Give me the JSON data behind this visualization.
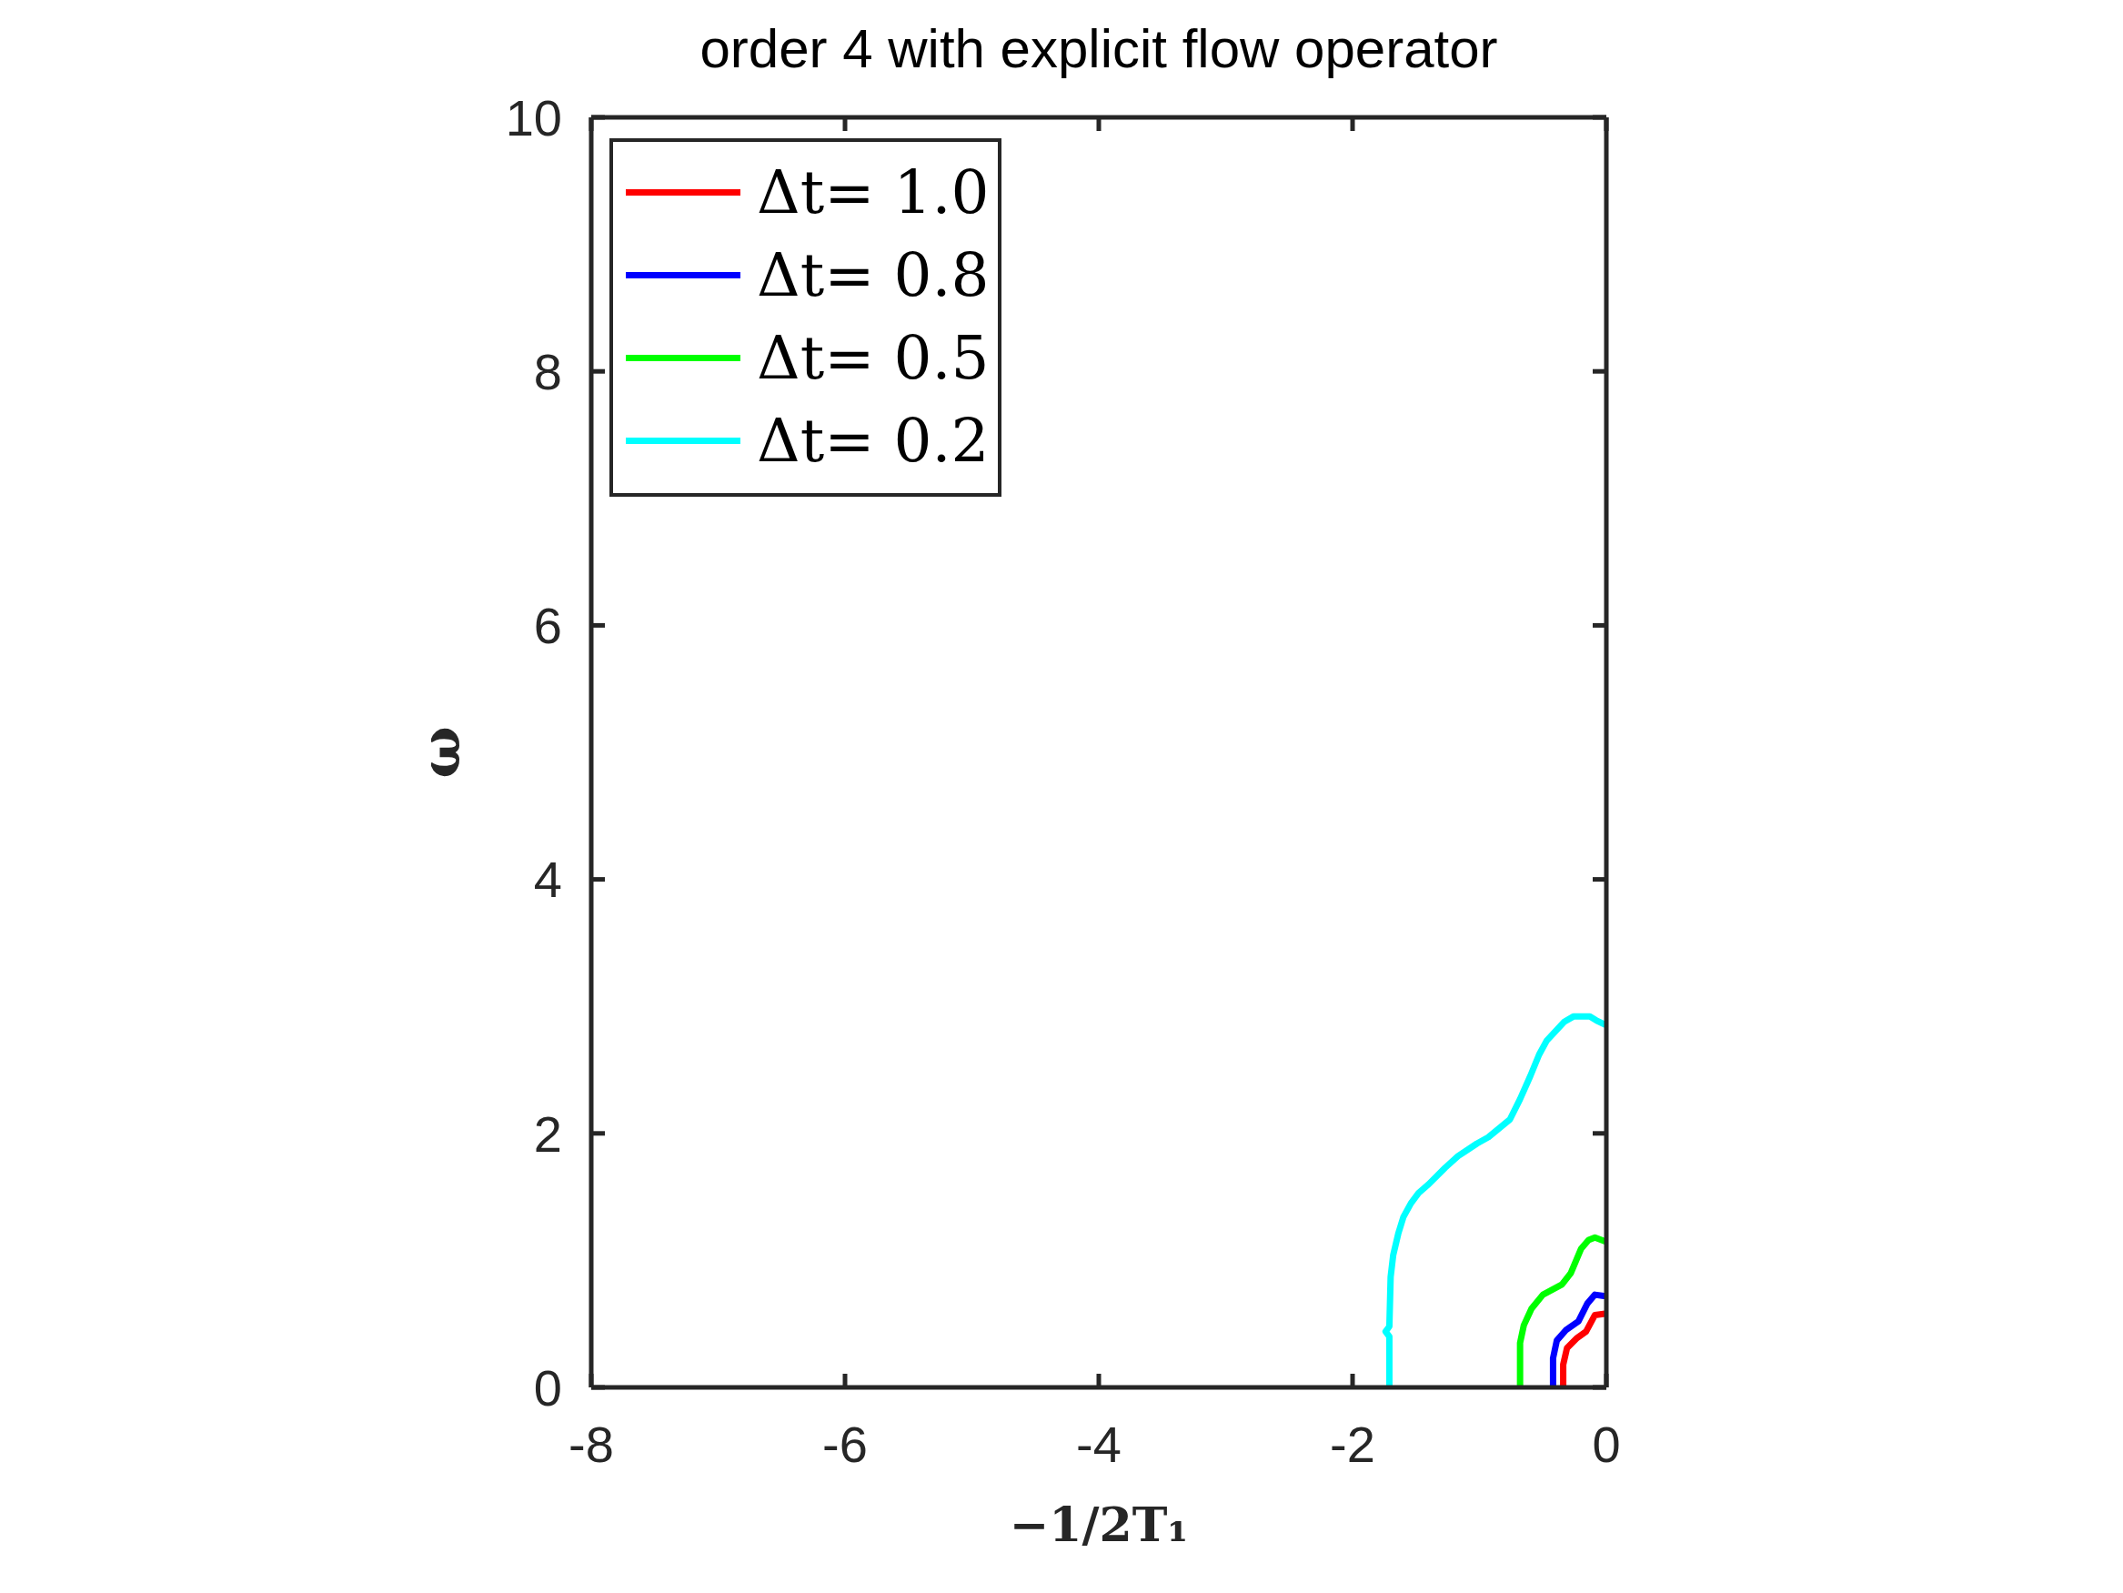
{
  "chart_data": {
    "type": "line",
    "title": "order 4 with explicit flow operator",
    "xlabel": "−1/2T₁",
    "ylabel": "ω",
    "xlim": [
      -8,
      0
    ],
    "xticks": [
      -8,
      -6,
      -4,
      -2,
      0
    ],
    "ylim": [
      0,
      10
    ],
    "yticks": [
      0,
      2,
      4,
      6,
      8,
      10
    ],
    "legend": "top left",
    "marker": "none",
    "line_style": "solid",
    "series": [
      {
        "name": "Δt= 1.0",
        "color": "#ff0000",
        "x": [
          -0.34,
          -0.34,
          -0.31,
          -0.23,
          -0.16,
          -0.09,
          -0.01
        ],
        "values": [
          0,
          0.18,
          0.31,
          0.39,
          0.44,
          0.57,
          0.58
        ]
      },
      {
        "name": "Δt= 0.8",
        "color": "#0000ff",
        "x": [
          -0.42,
          -0.42,
          -0.39,
          -0.32,
          -0.22,
          -0.15,
          -0.09,
          -0.02
        ],
        "values": [
          0,
          0.23,
          0.37,
          0.45,
          0.52,
          0.66,
          0.73,
          0.72
        ]
      },
      {
        "name": "Δt= 0.5",
        "color": "#00ff00",
        "x": [
          -0.68,
          -0.68,
          -0.65,
          -0.59,
          -0.5,
          -0.35,
          -0.28,
          -0.2,
          -0.14,
          -0.09,
          -0.01
        ],
        "values": [
          0,
          0.35,
          0.49,
          0.62,
          0.73,
          0.81,
          0.9,
          1.09,
          1.16,
          1.18,
          1.15
        ]
      },
      {
        "name": "Δt= 0.2",
        "color": "#00ffff",
        "x": [
          -1.71,
          -1.71,
          -1.74,
          -1.71,
          -1.7,
          -1.68,
          -1.64,
          -1.6,
          -1.54,
          -1.48,
          -1.4,
          -1.27,
          -1.17,
          -1.02,
          -0.93,
          -0.76,
          -0.68,
          -0.6,
          -0.53,
          -0.47,
          -0.33,
          -0.26,
          -0.13,
          -0.08,
          -0.02
        ],
        "values": [
          0,
          0.4,
          0.44,
          0.48,
          0.87,
          1.04,
          1.21,
          1.34,
          1.45,
          1.53,
          1.6,
          1.73,
          1.82,
          1.92,
          1.97,
          2.11,
          2.27,
          2.45,
          2.62,
          2.73,
          2.88,
          2.92,
          2.92,
          2.89,
          2.86
        ]
      }
    ]
  }
}
